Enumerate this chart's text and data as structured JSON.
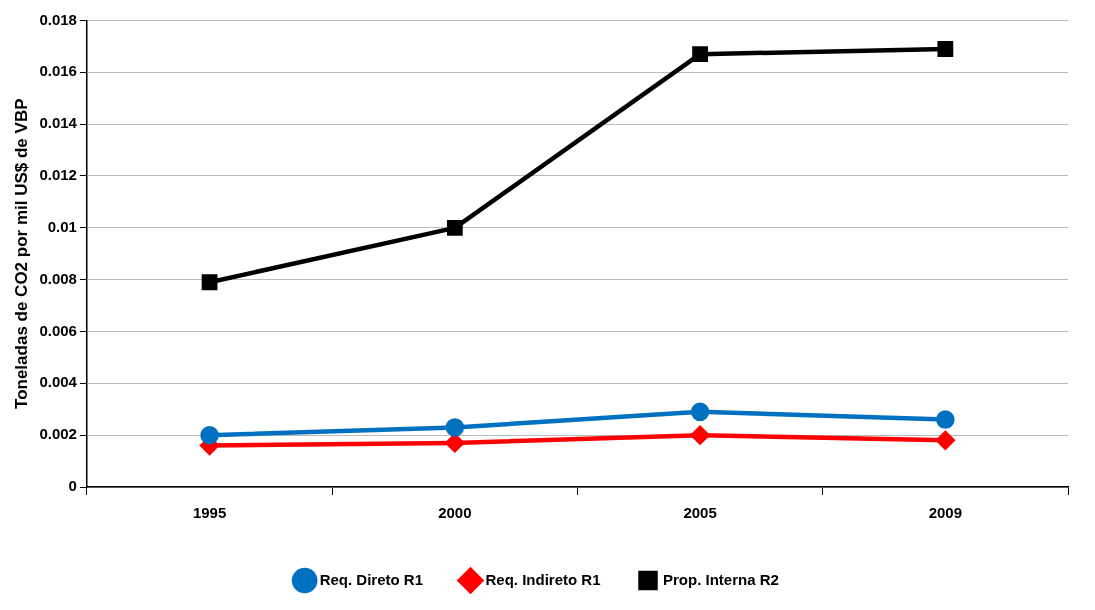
{
  "chart_data": {
    "type": "line",
    "ylabel": "Toneladas de CO2 por mil US$ de VBP",
    "categories": [
      "1995",
      "2000",
      "2005",
      "2009"
    ],
    "series": [
      {
        "name": "Req. Direto R1",
        "color": "#0070c0",
        "marker": "circle",
        "values": [
          0.002,
          0.0023,
          0.0029,
          0.0026
        ]
      },
      {
        "name": "Req. Indireto R1",
        "color": "#ff0000",
        "marker": "diamond",
        "values": [
          0.0016,
          0.0017,
          0.002,
          0.0018
        ]
      },
      {
        "name": "Prop. Interna R2",
        "color": "#000000",
        "marker": "square",
        "values": [
          0.0079,
          0.01,
          0.0167,
          0.0169
        ]
      }
    ],
    "ylim": [
      0,
      0.018
    ],
    "yticks": [
      0,
      0.002,
      0.004,
      0.006,
      0.008,
      0.01,
      0.012,
      0.014,
      0.016,
      0.018
    ],
    "grid": "y",
    "legend": "bottom",
    "line_style": "solid"
  }
}
